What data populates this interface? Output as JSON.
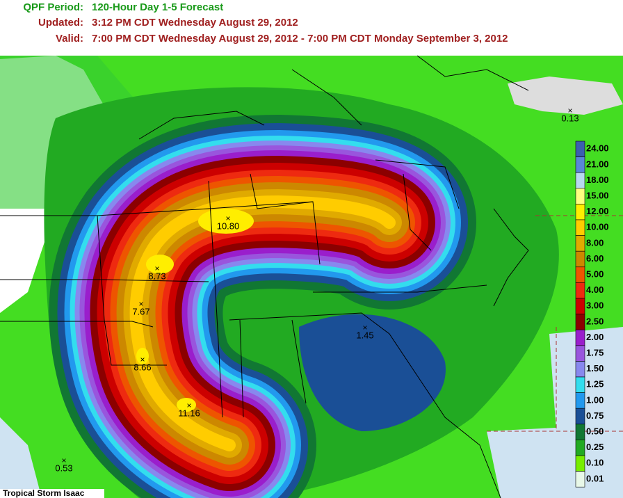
{
  "header": {
    "period_label": "QPF Period:",
    "period": "120-Hour Day 1-5 Forecast",
    "updated_label": "Updated:",
    "updated": "3:12 PM CDT Wednesday August 29, 2012",
    "valid_label": "Valid:",
    "valid": "7:00 PM CDT Wednesday August 29, 2012 - 7:00 PM CDT Monday September 3, 2012"
  },
  "legend": {
    "items": [
      {
        "label": "24.00",
        "color": "#3c5fb0"
      },
      {
        "label": "21.00",
        "color": "#5a86d8"
      },
      {
        "label": "18.00",
        "color": "#b8d8f0"
      },
      {
        "label": "15.00",
        "color": "#ffff80"
      },
      {
        "label": "12.00",
        "color": "#ffee00"
      },
      {
        "label": "10.00",
        "color": "#ffcc00"
      },
      {
        "label": "8.00",
        "color": "#e0aa00"
      },
      {
        "label": "6.00",
        "color": "#cc8800"
      },
      {
        "label": "5.00",
        "color": "#ee5500"
      },
      {
        "label": "4.00",
        "color": "#ee2a10"
      },
      {
        "label": "3.00",
        "color": "#cc0000"
      },
      {
        "label": "2.50",
        "color": "#8b0000"
      },
      {
        "label": "2.00",
        "color": "#9a1ecc"
      },
      {
        "label": "1.75",
        "color": "#9955dd"
      },
      {
        "label": "1.50",
        "color": "#8888ee"
      },
      {
        "label": "1.25",
        "color": "#33ddee"
      },
      {
        "label": "1.00",
        "color": "#2299ee"
      },
      {
        "label": "0.75",
        "color": "#1a4f96"
      },
      {
        "label": "0.50",
        "color": "#117733"
      },
      {
        "label": "0.25",
        "color": "#22aa22"
      },
      {
        "label": "0.10",
        "color": "#77ee00"
      },
      {
        "label": "0.01",
        "color": "#e8f8e8"
      }
    ]
  },
  "points": [
    {
      "label": "0.13"
    },
    {
      "label": "10.80"
    },
    {
      "label": "8.73"
    },
    {
      "label": "7.67"
    },
    {
      "label": "1.45"
    },
    {
      "label": "8.66"
    },
    {
      "label": "11.16"
    },
    {
      "label": "0.53"
    }
  ],
  "footer": "Tropical Storm Isaac"
}
